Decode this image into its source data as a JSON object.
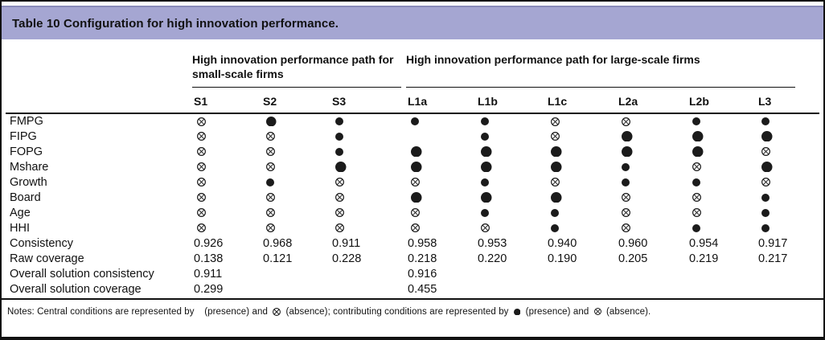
{
  "title": "Table 10 Configuration for high innovation performance.",
  "groups": {
    "small": {
      "label": "High innovation performance path for small-scale firms",
      "col_count": 3
    },
    "large": {
      "label": "High innovation performance path for large-scale firms",
      "col_count": 6
    }
  },
  "columns": [
    "S1",
    "S2",
    "S3",
    "L1a",
    "L1b",
    "L1c",
    "L2a",
    "L2b",
    "L3"
  ],
  "symbol_legend": {
    "CP": "central-presence",
    "CA": "central-absence",
    "P": "contributing-presence",
    "A": "contributing-absence"
  },
  "condition_rows": [
    {
      "label": "FMPG",
      "cells": [
        "A",
        "CP",
        "P",
        "P",
        "P",
        "A",
        "A",
        "P",
        "P"
      ]
    },
    {
      "label": "FIPG",
      "cells": [
        "A",
        "A",
        "P",
        "",
        "P",
        "A",
        "CP",
        "CP",
        "CP"
      ]
    },
    {
      "label": "FOPG",
      "cells": [
        "A",
        "A",
        "P",
        "CP",
        "CP",
        "CP",
        "CP",
        "CP",
        "A"
      ]
    },
    {
      "label": "Mshare",
      "cells": [
        "A",
        "A",
        "CP",
        "CP",
        "CP",
        "CP",
        "P",
        "A",
        "CP"
      ]
    },
    {
      "label": "Growth",
      "cells": [
        "A",
        "P",
        "A",
        "A",
        "P",
        "A",
        "P",
        "P",
        "A"
      ]
    },
    {
      "label": "Board",
      "cells": [
        "A",
        "A",
        "A",
        "CP",
        "CP",
        "CP",
        "A",
        "A",
        "P"
      ]
    },
    {
      "label": "Age",
      "cells": [
        "A",
        "A",
        "A",
        "A",
        "P",
        "P",
        "A",
        "A",
        "P"
      ]
    },
    {
      "label": "HHI",
      "cells": [
        "A",
        "A",
        "A",
        "A",
        "A",
        "P",
        "A",
        "P",
        "P"
      ]
    }
  ],
  "stat_rows": [
    {
      "label": "Consistency",
      "values": [
        "0.926",
        "0.968",
        "0.911",
        "0.958",
        "0.953",
        "0.940",
        "0.960",
        "0.954",
        "0.917"
      ]
    },
    {
      "label": "Raw coverage",
      "values": [
        "0.138",
        "0.121",
        "0.228",
        "0.218",
        "0.220",
        "0.190",
        "0.205",
        "0.219",
        "0.217"
      ]
    },
    {
      "label": "Overall solution consistency",
      "values": [
        "0.911",
        "",
        "",
        "0.916",
        "",
        "",
        "",
        "",
        ""
      ]
    },
    {
      "label": "Overall solution coverage",
      "values": [
        "0.299",
        "",
        "",
        "0.455",
        "",
        "",
        "",
        "",
        ""
      ]
    }
  ],
  "notes": {
    "part1": "Notes: Central conditions are represented by",
    "part2": "(presence) and",
    "part3": "(absence); contributing conditions are represented by",
    "part4": "(presence) and",
    "part5": "(absence)."
  }
}
